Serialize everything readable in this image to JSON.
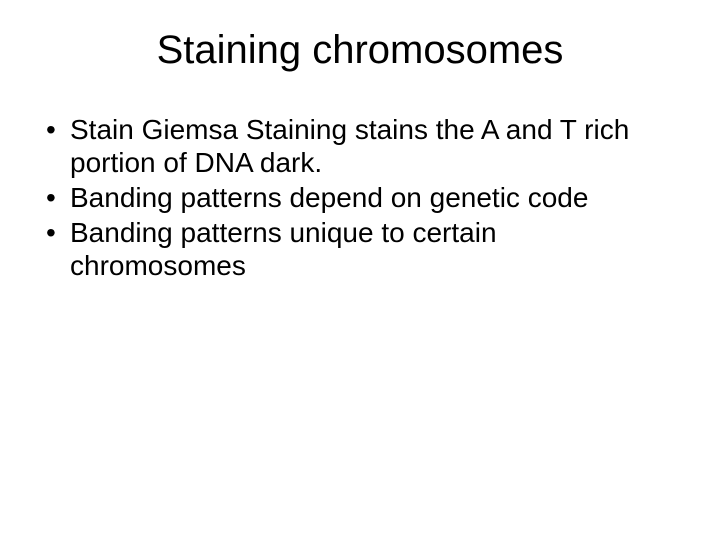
{
  "slide": {
    "title": "Staining chromosomes",
    "title_fontsize": 40,
    "title_color": "#000000",
    "bullet_fontsize": 28,
    "bullet_color": "#000000",
    "background_color": "#ffffff",
    "bullets": [
      "Stain Giemsa Staining stains the A and T rich  portion of DNA dark.",
      "Banding patterns depend on genetic code",
      "Banding patterns unique to certain chromosomes"
    ]
  }
}
